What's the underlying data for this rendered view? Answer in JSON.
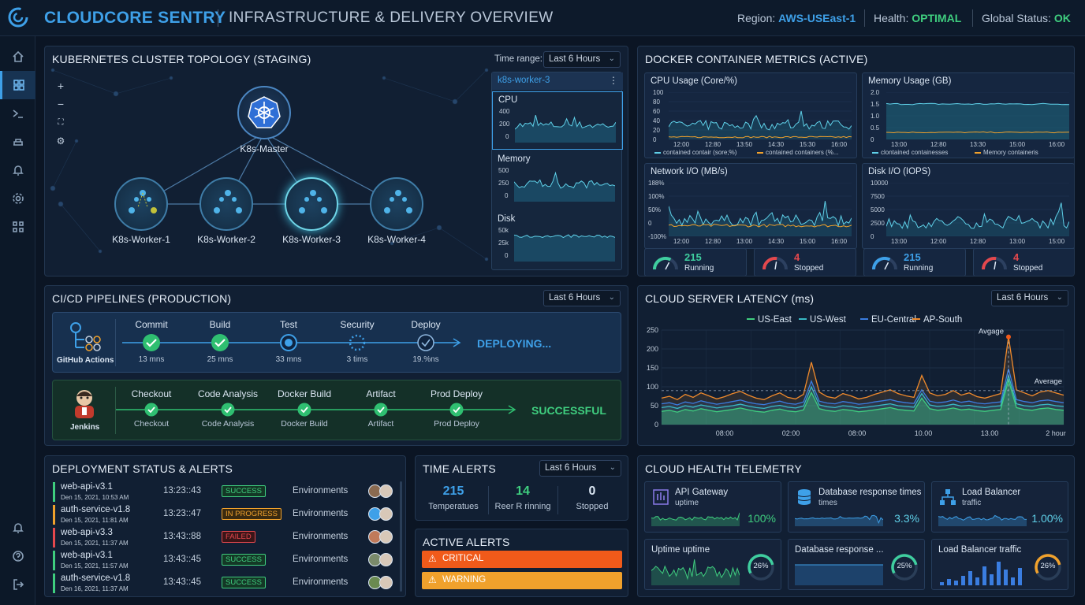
{
  "header": {
    "brand": "CLOUDCORE SENTRY",
    "title": "INFRASTRUCTURE & DELIVERY OVERVIEW",
    "region_label": "Region:",
    "region_value": "AWS-USEast-1",
    "health_label": "Health:",
    "health_value": "OPTIMAL",
    "status_label": "Global Status:",
    "status_value": "OK",
    "colors": {
      "accent": "#3ea0e8",
      "ok": "#3fce7f"
    }
  },
  "sidebar": {
    "items": [
      {
        "icon": "home-icon"
      },
      {
        "icon": "dashboard-grid-icon",
        "active": true
      },
      {
        "icon": "terminal-icon"
      },
      {
        "icon": "deploy-icon"
      },
      {
        "icon": "bell-icon"
      },
      {
        "icon": "settings-icon"
      },
      {
        "icon": "apps-icon"
      }
    ],
    "bottom": [
      {
        "icon": "notification-icon"
      },
      {
        "icon": "help-icon"
      },
      {
        "icon": "logout-icon"
      }
    ]
  },
  "k8s": {
    "title": "KUBERNETES CLUSTER TOPOLOGY (STAGING)",
    "time_label": "Time range:",
    "time_value": "Last 6 Hours",
    "master": "K8s-Master",
    "workers": [
      "K8s-Worker-1",
      "K8s-Worker-2",
      "K8s-Worker-3",
      "K8s-Worker-4"
    ],
    "detail": {
      "node": "k8s-worker-3",
      "metrics": [
        {
          "name": "CPU",
          "ticks": [
            "400",
            "200",
            "0"
          ]
        },
        {
          "name": "Memory",
          "ticks": [
            "500",
            "250",
            "0"
          ]
        },
        {
          "name": "Disk",
          "ticks": [
            "50k",
            "25k",
            "0"
          ]
        }
      ]
    }
  },
  "docker": {
    "title": "DOCKER CONTAINER METRICS (ACTIVE)",
    "cpu": {
      "title": "CPU Usage (Core/%)",
      "yticks": [
        "100",
        "80",
        "60",
        "40",
        "20",
        "0"
      ],
      "xticks": [
        "12:00",
        "12:80",
        "13:50",
        "14:30",
        "15:30",
        "16:00"
      ],
      "legend": [
        "contained contair (sore;%)",
        "contained containers (%..."
      ]
    },
    "memory": {
      "title": "Memory Usage (GB)",
      "yticks": [
        "2.0",
        "1.5",
        "1.0",
        "0.5",
        "0"
      ],
      "xticks": [
        "13:00",
        "12:80",
        "13:30",
        "15:00",
        "16:00"
      ],
      "legend": [
        "clontained containesses",
        "Memory containeris"
      ]
    },
    "network": {
      "title": "Network I/O (MB/s)",
      "yticks": [
        "188%",
        "100%",
        "50%",
        "0",
        "-100%"
      ],
      "xticks": [
        "12:00",
        "12:80",
        "13:00",
        "14:30",
        "15:00",
        "16:00"
      ]
    },
    "disk": {
      "title": "Disk I/O (IOPS)",
      "yticks": [
        "10000",
        "7500",
        "5000",
        "2500",
        "0"
      ],
      "xticks": [
        "13:00",
        "12:00",
        "12:80",
        "13:00",
        "15:00"
      ]
    },
    "gauges": [
      {
        "value": "215",
        "label": "Running",
        "level": 0.65,
        "color": "#3fce9f"
      },
      {
        "value": "4",
        "label": "Stopped",
        "level": 0.55,
        "color": "#e5484d"
      },
      {
        "value": "215",
        "label": "Running",
        "level": 0.65,
        "color": "#3ea0e8"
      },
      {
        "value": "4",
        "label": "Stopped",
        "level": 0.55,
        "color": "#e5484d"
      }
    ]
  },
  "cicd": {
    "title": "CI/CD PIPELINES (PRODUCTION)",
    "time_value": "Last 6 Hours",
    "github": {
      "name": "GitHub Actions",
      "status": "DEPLOYING...",
      "stages": [
        {
          "name": "Commit",
          "time": "13 mns",
          "state": "done"
        },
        {
          "name": "Build",
          "time": "25 mns",
          "state": "done"
        },
        {
          "name": "Test",
          "time": "33 mns",
          "state": "running"
        },
        {
          "name": "Security",
          "time": "3 tims",
          "state": "pending"
        },
        {
          "name": "Deploy",
          "time": "19.%ns",
          "state": "outline"
        }
      ]
    },
    "jenkins": {
      "name": "Jenkins",
      "status": "SUCCESSFUL",
      "stages": [
        {
          "name": "Checkout",
          "sub": "Checkout"
        },
        {
          "name": "Code Analysis",
          "sub": "Code Analysis"
        },
        {
          "name": "Docker Build",
          "sub": "Docker Build"
        },
        {
          "name": "Artifact",
          "sub": "Artifact"
        },
        {
          "name": "Prod Deploy",
          "sub": "Prod Deploy"
        }
      ]
    }
  },
  "latency": {
    "title": "CLOUD SERVER LATENCY (ms)",
    "time_value": "Last 6 Hours",
    "avg_label_1": "Avgage",
    "avg_label_2": "Average"
  },
  "chart_data": {
    "type": "line",
    "title": "CLOUD SERVER LATENCY (ms)",
    "ylim": [
      0,
      250
    ],
    "yticks": [
      "250",
      "200",
      "150",
      "100",
      "50",
      "0"
    ],
    "xticks": [
      "08:00",
      "02:00",
      "08:00",
      "10.00",
      "13.00",
      "2 hour"
    ],
    "series": [
      {
        "name": "US-East",
        "color": "#3fce7f",
        "values": [
          35,
          38,
          33,
          40,
          36,
          42,
          38,
          34,
          37,
          40,
          44,
          39,
          35,
          33,
          38,
          41,
          36,
          34,
          39,
          85,
          42,
          37,
          35,
          40,
          38,
          34,
          36,
          39,
          42,
          45,
          40,
          38,
          36,
          70,
          42,
          38,
          40,
          44,
          39,
          41,
          37,
          35,
          38,
          40,
          118,
          45,
          40,
          38,
          42,
          44,
          40,
          38
        ]
      },
      {
        "name": "US-West",
        "color": "#39b9c4",
        "values": [
          45,
          48,
          43,
          50,
          46,
          52,
          48,
          44,
          47,
          50,
          54,
          49,
          45,
          43,
          48,
          51,
          46,
          44,
          49,
          100,
          52,
          47,
          45,
          50,
          48,
          44,
          46,
          49,
          52,
          55,
          50,
          48,
          46,
          82,
          52,
          48,
          50,
          54,
          49,
          51,
          47,
          45,
          48,
          50,
          130,
          55,
          50,
          48,
          52,
          54,
          50,
          48
        ]
      },
      {
        "name": "EU-Central",
        "color": "#3a7de0",
        "values": [
          55,
          58,
          52,
          60,
          56,
          63,
          58,
          54,
          57,
          61,
          65,
          59,
          55,
          53,
          58,
          62,
          56,
          54,
          60,
          115,
          62,
          57,
          55,
          61,
          58,
          54,
          56,
          60,
          63,
          66,
          61,
          58,
          56,
          92,
          62,
          58,
          60,
          65,
          59,
          62,
          57,
          55,
          58,
          60,
          148,
          66,
          61,
          58,
          63,
          65,
          61,
          58
        ]
      },
      {
        "name": "AP-South",
        "color": "#f08a2c",
        "values": [
          70,
          75,
          66,
          80,
          72,
          84,
          76,
          68,
          74,
          82,
          88,
          78,
          70,
          66,
          76,
          84,
          72,
          68,
          80,
          165,
          86,
          74,
          70,
          82,
          76,
          68,
          72,
          80,
          86,
          92,
          82,
          76,
          72,
          130,
          84,
          76,
          80,
          90,
          78,
          84,
          74,
          70,
          76,
          82,
          232,
          92,
          84,
          76,
          86,
          90,
          84,
          78
        ]
      }
    ],
    "legend": "top",
    "average": 90
  },
  "alerts_table": {
    "title": "DEPLOYMENT STATUS & ALERTS",
    "rows": [
      {
        "name": "web-api-v3.1",
        "date": "Den 15, 2021, 10:53 AM",
        "time": "13:23::43",
        "status": "SUCCESS",
        "env": "Environments",
        "bar": "#3fce7f"
      },
      {
        "name": "auth-service-v1.8",
        "date": "Den 15, 2021, 11:81 AM",
        "time": "13:23::47",
        "status": "IN PROGRESS",
        "env": "Environments",
        "bar": "#f0a12c"
      },
      {
        "name": "web-api-v3.3",
        "date": "Den 15, 2021, 11:37 AM",
        "time": "13:43::88",
        "status": "FAILED",
        "env": "Environments",
        "bar": "#e5484d"
      },
      {
        "name": "web-api-v3.1",
        "date": "Den 15, 2021, 11:57 AM",
        "time": "13:43::45",
        "status": "SUCCESS",
        "env": "Environments",
        "bar": "#3fce7f"
      },
      {
        "name": "auth-service-v1.8",
        "date": "Den 16, 2021, 11:37 AM",
        "time": "13:43::45",
        "status": "SUCCESS",
        "env": "Environments",
        "bar": "#3fce7f"
      }
    ]
  },
  "time_alerts": {
    "title": "TIME ALERTS",
    "time_value": "Last 6 Hours",
    "stats": [
      {
        "value": "215",
        "label": "Temperatues",
        "color": "#3ea0e8"
      },
      {
        "value": "14",
        "label": "Reer R rinning",
        "color": "#3fce7f"
      },
      {
        "value": "0",
        "label": "Stopped",
        "color": "#dbe6f3"
      }
    ]
  },
  "active_alerts": {
    "title": "ACTIVE ALERTS",
    "items": [
      {
        "label": "CRITICAL",
        "color": "#f05a1a"
      },
      {
        "label": "WARNING",
        "color": "#f0a12c"
      }
    ]
  },
  "telemetry": {
    "title": "CLOUD HEALTH TELEMETRY",
    "cards": [
      {
        "title": "API Gateway",
        "sub": "uptime",
        "value": "100%",
        "icon": "api-gateway-icon"
      },
      {
        "title": "Database response times",
        "sub": "times",
        "value": "3.3%",
        "icon": "database-icon"
      },
      {
        "title": "Load Balancer",
        "sub": "traffic",
        "value": "1.00%",
        "icon": "load-balancer-icon"
      },
      {
        "title": "Uptime uptime",
        "gauge": "26%",
        "level": 0.26
      },
      {
        "title": "Database response ...",
        "gauge": "25%",
        "level": 0.25
      },
      {
        "title": "Load Balancer traffic",
        "gauge": "26%",
        "level": 0.26
      }
    ]
  }
}
